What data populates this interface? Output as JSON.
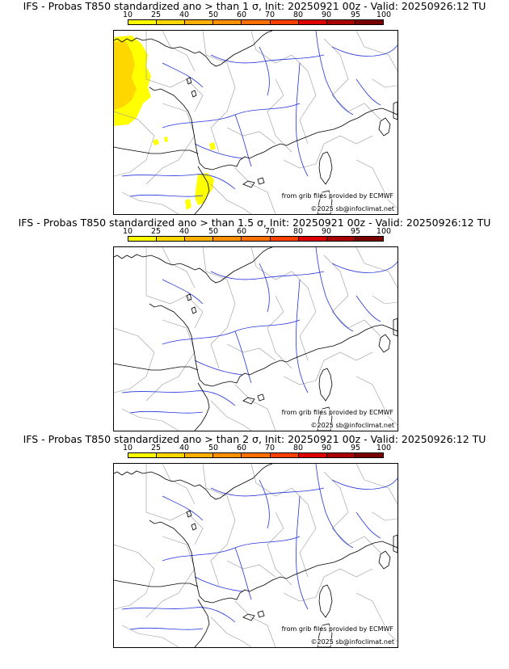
{
  "panels": [
    {
      "title": "IFS - Probas T850  standardized ano > than 1 σ, Init: 20250921 00z - Valid: 20250926:12 TU",
      "sigma": 1,
      "has_anomaly": true
    },
    {
      "title": "IFS - Probas T850  standardized ano > than 1.5 σ, Init: 20250921 00z - Valid: 20250926:12 TU",
      "sigma": 1.5,
      "has_anomaly": false
    },
    {
      "title": "IFS - Probas T850  standardized ano > than 2 σ, Init: 20250921 00z - Valid: 20250926:12 TU",
      "sigma": 2,
      "has_anomaly": false
    }
  ],
  "colorbar": {
    "labels": [
      "10",
      "25",
      "40",
      "50",
      "60",
      "70",
      "80",
      "90",
      "95",
      "100"
    ],
    "colors": [
      "#ffff00",
      "#ffd700",
      "#ffb000",
      "#ff9000",
      "#ff7000",
      "#ff4000",
      "#dd0000",
      "#aa0000",
      "#7a0000"
    ]
  },
  "credits": {
    "grib": "from grib files provided by ECMWF",
    "copyright": "©2025 sb@infoclimat.net"
  },
  "colors": {
    "coast": "#000000",
    "rivers": "#2233dd",
    "borders": "#999999",
    "prob_low": "#ffff00",
    "prob_mid": "#ffd700"
  }
}
